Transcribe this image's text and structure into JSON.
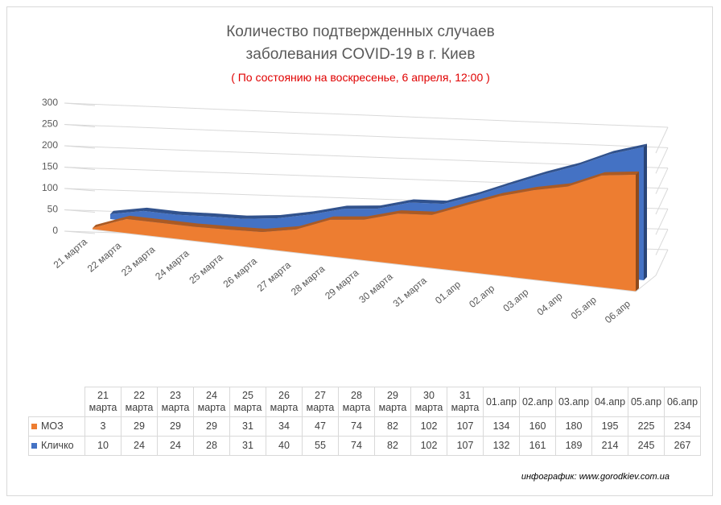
{
  "chart_data": {
    "type": "area3d",
    "title": "Количество подтвержденных случаев заболевания COVID-19 в г. Киев",
    "subtitle": "( По состоянию на воскресенье, 6 апреля, 12:00 )",
    "categories": [
      "21 марта",
      "22 марта",
      "23 марта",
      "24 марта",
      "25 марта",
      "26 марта",
      "27 марта",
      "28 марта",
      "29 марта",
      "30 марта",
      "31 марта",
      "01.апр",
      "02.апр",
      "03.апр",
      "04.апр",
      "05.апр",
      "06.апр"
    ],
    "series": [
      {
        "name": "МОЗ",
        "color": "#ed7d31",
        "values": [
          3,
          29,
          29,
          29,
          31,
          34,
          47,
          74,
          82,
          102,
          107,
          134,
          160,
          180,
          195,
          225,
          234
        ]
      },
      {
        "name": "Кличко",
        "color": "#4472c4",
        "values": [
          10,
          24,
          24,
          28,
          31,
          40,
          55,
          74,
          82,
          102,
          107,
          132,
          161,
          189,
          214,
          245,
          267
        ]
      }
    ],
    "ylim": [
      0,
      300
    ],
    "yticks": [
      0,
      50,
      100,
      150,
      200,
      250,
      300
    ],
    "grid": true,
    "annotation": "инфографик: www.gorodkiev.com.ua"
  }
}
